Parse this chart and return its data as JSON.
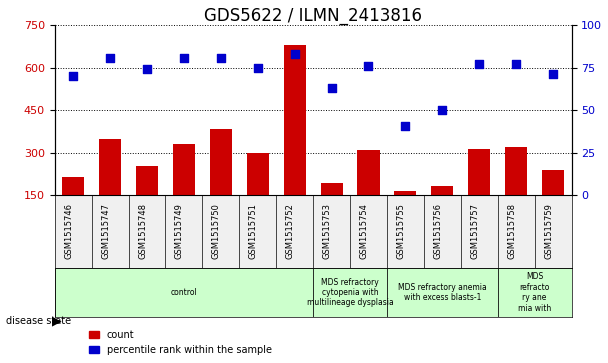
{
  "title": "GDS5622 / ILMN_2413816",
  "samples": [
    "GSM1515746",
    "GSM1515747",
    "GSM1515748",
    "GSM1515749",
    "GSM1515750",
    "GSM1515751",
    "GSM1515752",
    "GSM1515753",
    "GSM1515754",
    "GSM1515755",
    "GSM1515756",
    "GSM1515757",
    "GSM1515758",
    "GSM1515759"
  ],
  "counts": [
    215,
    350,
    255,
    330,
    385,
    300,
    680,
    195,
    310,
    165,
    185,
    315,
    320,
    240
  ],
  "percentile_ranks": [
    570,
    635,
    595,
    635,
    635,
    600,
    650,
    530,
    605,
    395,
    450,
    615,
    615,
    580
  ],
  "ylim_left": [
    150,
    750
  ],
  "ylim_right": [
    0,
    100
  ],
  "left_ticks": [
    150,
    300,
    450,
    600,
    750
  ],
  "right_ticks": [
    0,
    25,
    50,
    75,
    100
  ],
  "bar_color": "#cc0000",
  "dot_color": "#0000cc",
  "grid_color": "#000000",
  "bg_color": "#f0f0f0",
  "disease_states": [
    {
      "label": "control",
      "start": 0,
      "end": 7,
      "color": "#ccffcc"
    },
    {
      "label": "MDS refractory\ncytopenia with\nmultilineage dysplasia",
      "start": 7,
      "end": 9,
      "color": "#ccffcc"
    },
    {
      "label": "MDS refractory anemia\nwith excess blasts-1",
      "start": 9,
      "end": 12,
      "color": "#ccffcc"
    },
    {
      "label": "MDS\nrefracto\nry ane\nmia with",
      "start": 12,
      "end": 14,
      "color": "#ccffcc"
    }
  ],
  "left_label_color": "#cc0000",
  "right_label_color": "#0000cc",
  "title_fontsize": 12,
  "tick_fontsize": 8,
  "label_fontsize": 8,
  "dot_size": 40,
  "bar_width": 0.6
}
